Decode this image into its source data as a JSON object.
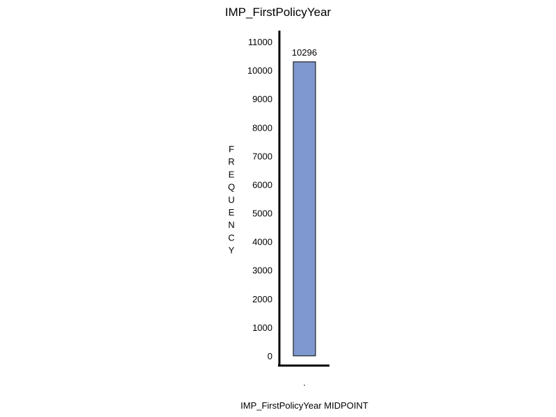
{
  "chart_data": {
    "type": "bar",
    "title": "IMP_FirstPolicyYear",
    "xlabel": "IMP_FirstPolicyYear  MIDPOINT",
    "ylabel": "FREQUENCY",
    "categories": [
      "."
    ],
    "values": [
      10296
    ],
    "data_labels": [
      "10296"
    ],
    "ylim": [
      0,
      11000
    ],
    "yticks": [
      0,
      1000,
      2000,
      3000,
      4000,
      5000,
      6000,
      7000,
      8000,
      9000,
      10000,
      11000
    ],
    "grid": false,
    "legend": "none",
    "bar_color": "#7f98cd",
    "bar_edge_color": "#000000"
  }
}
